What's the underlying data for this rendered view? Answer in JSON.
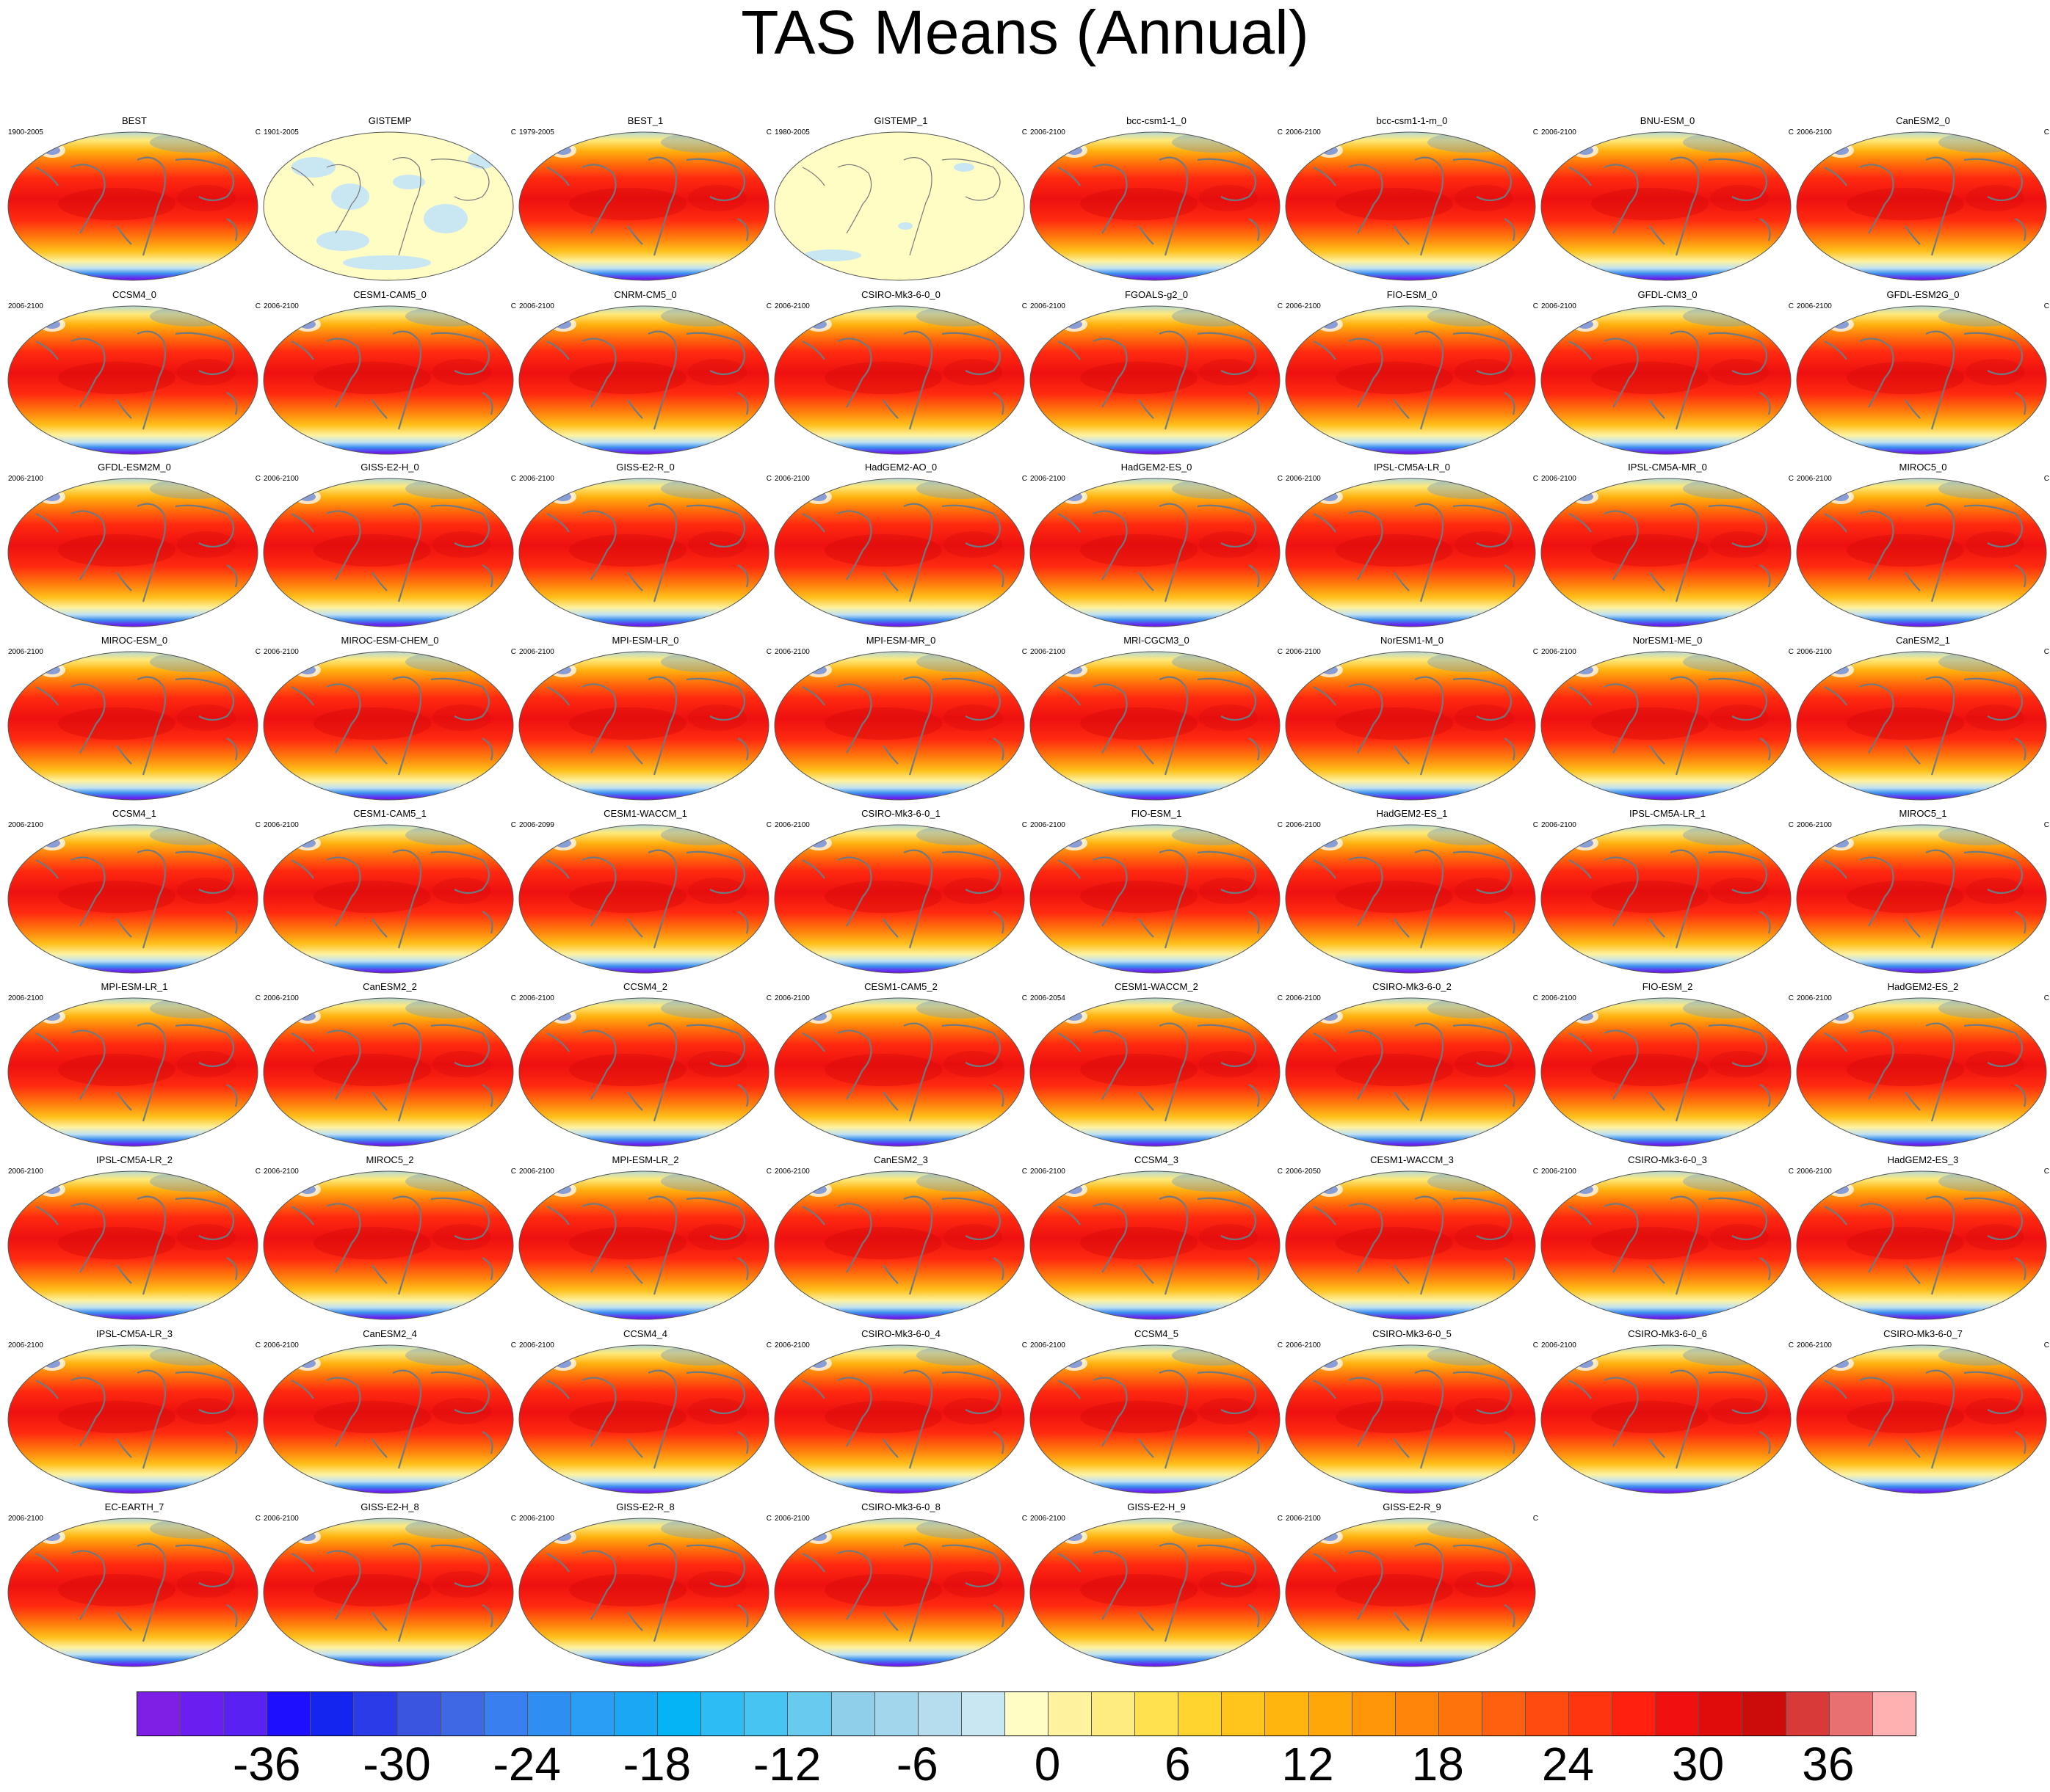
{
  "title": "TAS Means (Annual)",
  "chart_data": {
    "type": "heatmap",
    "title": "TAS Means (Annual)",
    "units": "C",
    "colorbar": {
      "tick_labels": [
        "-36",
        "-30",
        "-24",
        "-18",
        "-12",
        "-6",
        "0",
        "6",
        "12",
        "18",
        "24",
        "30",
        "36"
      ],
      "levels": [
        -40,
        -38,
        -36,
        -34,
        -32,
        -30,
        -28,
        -26,
        -24,
        -22,
        -20,
        -18,
        -16,
        -14,
        -12,
        -10,
        -8,
        -6,
        -4,
        -2,
        0,
        2,
        4,
        6,
        8,
        10,
        12,
        14,
        16,
        18,
        20,
        22,
        24,
        26,
        28,
        30,
        32,
        34,
        36,
        38,
        40
      ],
      "colors": [
        "#7f1fe6",
        "#6a1ff0",
        "#5a22f2",
        "#1e10ff",
        "#1525f0",
        "#2a3be8",
        "#3a55e0",
        "#3d6ae4",
        "#3a7ff0",
        "#2f8ef2",
        "#2a9df4",
        "#1aa8f5",
        "#05b4f5",
        "#2ebcf5",
        "#48c4f2",
        "#68caee",
        "#90cfe9",
        "#a2d6ec",
        "#b5ddee",
        "#c9e6f3",
        "#fffcc4",
        "#fff3a0",
        "#ffec80",
        "#ffe150",
        "#ffd42e",
        "#ffc51d",
        "#ffb50e",
        "#ffa608",
        "#ff9508",
        "#ff850a",
        "#ff730c",
        "#ff600f",
        "#ff4a10",
        "#ff3510",
        "#ff2010",
        "#f01010",
        "#e00c0c",
        "#cc0b0b",
        "#d83a3a",
        "#e87070",
        "#ffb0b0"
      ]
    },
    "panels": [
      {
        "name": "BEST",
        "years": "1900-2005",
        "units": "C",
        "style": "model"
      },
      {
        "name": "GISTEMP",
        "years": "1901-2005",
        "units": "C",
        "style": "anomaly"
      },
      {
        "name": "BEST_1",
        "years": "1979-2005",
        "units": "C",
        "style": "model"
      },
      {
        "name": "GISTEMP_1",
        "years": "1980-2005",
        "units": "C",
        "style": "anomaly"
      },
      {
        "name": "bcc-csm1-1_0",
        "years": "2006-2100",
        "units": "C",
        "style": "model"
      },
      {
        "name": "bcc-csm1-1-m_0",
        "years": "2006-2100",
        "units": "C",
        "style": "model"
      },
      {
        "name": "BNU-ESM_0",
        "years": "2006-2100",
        "units": "C",
        "style": "model"
      },
      {
        "name": "CanESM2_0",
        "years": "2006-2100",
        "units": "C",
        "style": "model"
      },
      {
        "name": "CCSM4_0",
        "years": "2006-2100",
        "units": "C",
        "style": "model"
      },
      {
        "name": "CESM1-CAM5_0",
        "years": "2006-2100",
        "units": "C",
        "style": "model"
      },
      {
        "name": "CNRM-CM5_0",
        "years": "2006-2100",
        "units": "C",
        "style": "model"
      },
      {
        "name": "CSIRO-Mk3-6-0_0",
        "years": "2006-2100",
        "units": "C",
        "style": "model"
      },
      {
        "name": "FGOALS-g2_0",
        "years": "2006-2100",
        "units": "C",
        "style": "model"
      },
      {
        "name": "FIO-ESM_0",
        "years": "2006-2100",
        "units": "C",
        "style": "model"
      },
      {
        "name": "GFDL-CM3_0",
        "years": "2006-2100",
        "units": "C",
        "style": "model"
      },
      {
        "name": "GFDL-ESM2G_0",
        "years": "2006-2100",
        "units": "C",
        "style": "model"
      },
      {
        "name": "GFDL-ESM2M_0",
        "years": "2006-2100",
        "units": "C",
        "style": "model"
      },
      {
        "name": "GISS-E2-H_0",
        "years": "2006-2100",
        "units": "C",
        "style": "model"
      },
      {
        "name": "GISS-E2-R_0",
        "years": "2006-2100",
        "units": "C",
        "style": "model"
      },
      {
        "name": "HadGEM2-AO_0",
        "years": "2006-2100",
        "units": "C",
        "style": "model"
      },
      {
        "name": "HadGEM2-ES_0",
        "years": "2006-2100",
        "units": "C",
        "style": "model"
      },
      {
        "name": "IPSL-CM5A-LR_0",
        "years": "2006-2100",
        "units": "C",
        "style": "model"
      },
      {
        "name": "IPSL-CM5A-MR_0",
        "years": "2006-2100",
        "units": "C",
        "style": "model"
      },
      {
        "name": "MIROC5_0",
        "years": "2006-2100",
        "units": "C",
        "style": "model"
      },
      {
        "name": "MIROC-ESM_0",
        "years": "2006-2100",
        "units": "C",
        "style": "model"
      },
      {
        "name": "MIROC-ESM-CHEM_0",
        "years": "2006-2100",
        "units": "C",
        "style": "model"
      },
      {
        "name": "MPI-ESM-LR_0",
        "years": "2006-2100",
        "units": "C",
        "style": "model"
      },
      {
        "name": "MPI-ESM-MR_0",
        "years": "2006-2100",
        "units": "C",
        "style": "model"
      },
      {
        "name": "MRI-CGCM3_0",
        "years": "2006-2100",
        "units": "C",
        "style": "model"
      },
      {
        "name": "NorESM1-M_0",
        "years": "2006-2100",
        "units": "C",
        "style": "model"
      },
      {
        "name": "NorESM1-ME_0",
        "years": "2006-2100",
        "units": "C",
        "style": "model"
      },
      {
        "name": "CanESM2_1",
        "years": "2006-2100",
        "units": "C",
        "style": "model"
      },
      {
        "name": "CCSM4_1",
        "years": "2006-2100",
        "units": "C",
        "style": "model"
      },
      {
        "name": "CESM1-CAM5_1",
        "years": "2006-2100",
        "units": "C",
        "style": "model"
      },
      {
        "name": "CESM1-WACCM_1",
        "years": "2006-2099",
        "units": "C",
        "style": "model"
      },
      {
        "name": "CSIRO-Mk3-6-0_1",
        "years": "2006-2100",
        "units": "C",
        "style": "model"
      },
      {
        "name": "FIO-ESM_1",
        "years": "2006-2100",
        "units": "C",
        "style": "model"
      },
      {
        "name": "HadGEM2-ES_1",
        "years": "2006-2100",
        "units": "C",
        "style": "model"
      },
      {
        "name": "IPSL-CM5A-LR_1",
        "years": "2006-2100",
        "units": "C",
        "style": "model"
      },
      {
        "name": "MIROC5_1",
        "years": "2006-2100",
        "units": "C",
        "style": "model"
      },
      {
        "name": "MPI-ESM-LR_1",
        "years": "2006-2100",
        "units": "C",
        "style": "model"
      },
      {
        "name": "CanESM2_2",
        "years": "2006-2100",
        "units": "C",
        "style": "model"
      },
      {
        "name": "CCSM4_2",
        "years": "2006-2100",
        "units": "C",
        "style": "model"
      },
      {
        "name": "CESM1-CAM5_2",
        "years": "2006-2100",
        "units": "C",
        "style": "model"
      },
      {
        "name": "CESM1-WACCM_2",
        "years": "2006-2054",
        "units": "C",
        "style": "model"
      },
      {
        "name": "CSIRO-Mk3-6-0_2",
        "years": "2006-2100",
        "units": "C",
        "style": "model"
      },
      {
        "name": "FIO-ESM_2",
        "years": "2006-2100",
        "units": "C",
        "style": "model"
      },
      {
        "name": "HadGEM2-ES_2",
        "years": "2006-2100",
        "units": "C",
        "style": "model"
      },
      {
        "name": "IPSL-CM5A-LR_2",
        "years": "2006-2100",
        "units": "C",
        "style": "model"
      },
      {
        "name": "MIROC5_2",
        "years": "2006-2100",
        "units": "C",
        "style": "model"
      },
      {
        "name": "MPI-ESM-LR_2",
        "years": "2006-2100",
        "units": "C",
        "style": "model"
      },
      {
        "name": "CanESM2_3",
        "years": "2006-2100",
        "units": "C",
        "style": "model"
      },
      {
        "name": "CCSM4_3",
        "years": "2006-2100",
        "units": "C",
        "style": "model"
      },
      {
        "name": "CESM1-WACCM_3",
        "years": "2006-2050",
        "units": "C",
        "style": "model"
      },
      {
        "name": "CSIRO-Mk3-6-0_3",
        "years": "2006-2100",
        "units": "C",
        "style": "model"
      },
      {
        "name": "HadGEM2-ES_3",
        "years": "2006-2100",
        "units": "C",
        "style": "model"
      },
      {
        "name": "IPSL-CM5A-LR_3",
        "years": "2006-2100",
        "units": "C",
        "style": "model"
      },
      {
        "name": "CanESM2_4",
        "years": "2006-2100",
        "units": "C",
        "style": "model"
      },
      {
        "name": "CCSM4_4",
        "years": "2006-2100",
        "units": "C",
        "style": "model"
      },
      {
        "name": "CSIRO-Mk3-6-0_4",
        "years": "2006-2100",
        "units": "C",
        "style": "model"
      },
      {
        "name": "CCSM4_5",
        "years": "2006-2100",
        "units": "C",
        "style": "model"
      },
      {
        "name": "CSIRO-Mk3-6-0_5",
        "years": "2006-2100",
        "units": "C",
        "style": "model"
      },
      {
        "name": "CSIRO-Mk3-6-0_6",
        "years": "2006-2100",
        "units": "C",
        "style": "model"
      },
      {
        "name": "CSIRO-Mk3-6-0_7",
        "years": "2006-2100",
        "units": "C",
        "style": "model"
      },
      {
        "name": "EC-EARTH_7",
        "years": "2006-2100",
        "units": "C",
        "style": "model"
      },
      {
        "name": "GISS-E2-H_8",
        "years": "2006-2100",
        "units": "C",
        "style": "model"
      },
      {
        "name": "GISS-E2-R_8",
        "years": "2006-2100",
        "units": "C",
        "style": "model"
      },
      {
        "name": "CSIRO-Mk3-6-0_8",
        "years": "2006-2100",
        "units": "C",
        "style": "model"
      },
      {
        "name": "GISS-E2-H_9",
        "years": "2006-2100",
        "units": "C",
        "style": "model"
      },
      {
        "name": "GISS-E2-R_9",
        "years": "2006-2100",
        "units": "C",
        "style": "model"
      }
    ]
  }
}
